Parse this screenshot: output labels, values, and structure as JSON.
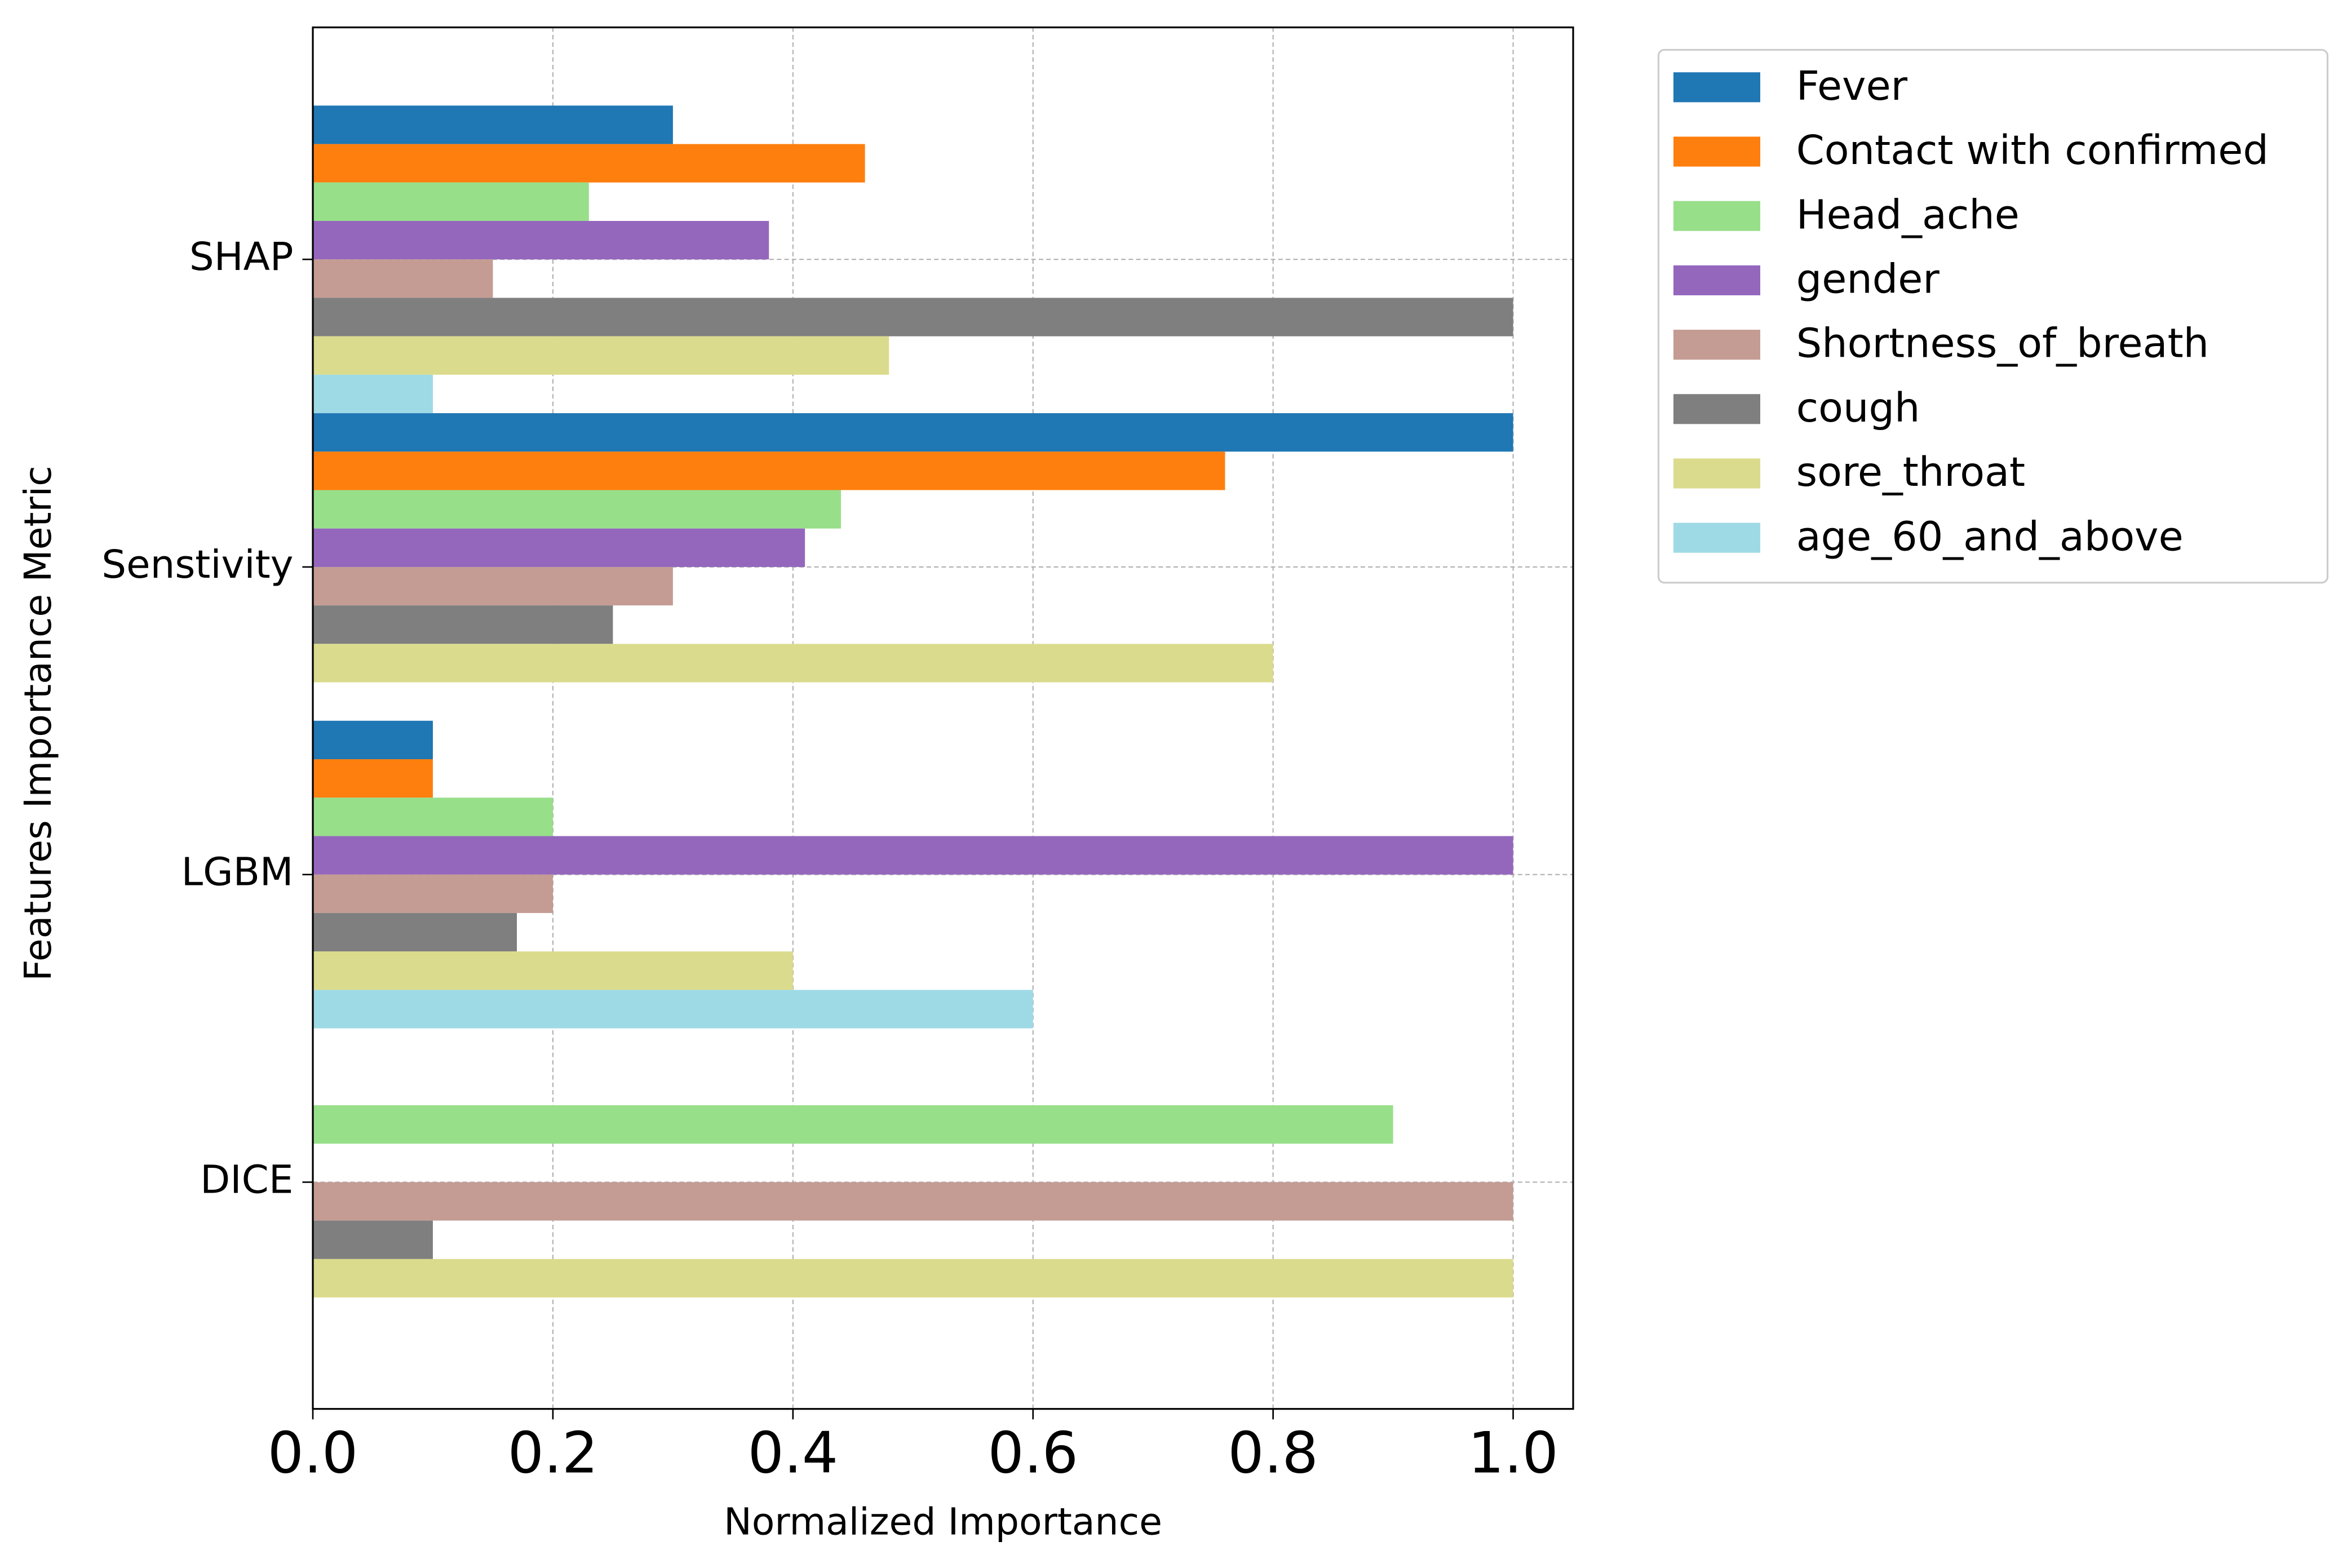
{
  "chart_data": {
    "type": "barh",
    "xlabel": "Normalized Importance",
    "ylabel": "Features Importance Metric",
    "categories": [
      "SHAP",
      "Senstivity",
      "LGBM",
      "DICE"
    ],
    "series": [
      {
        "name": "Fever",
        "color": "#1f77b4",
        "values": [
          0.3,
          1.0,
          0.1,
          0
        ]
      },
      {
        "name": "Contact with confirmed",
        "color": "#ff7f0e",
        "values": [
          0.46,
          0.76,
          0.1,
          0
        ]
      },
      {
        "name": "Head_ache",
        "color": "#98df8a",
        "values": [
          0.23,
          0.44,
          0.2,
          0.9
        ]
      },
      {
        "name": "gender",
        "color": "#9467bd",
        "values": [
          0.38,
          0.41,
          1.0,
          0
        ]
      },
      {
        "name": "Shortness_of_breath",
        "color": "#c49c94",
        "values": [
          0.15,
          0.3,
          0.2,
          1.0
        ]
      },
      {
        "name": "cough",
        "color": "#7f7f7f",
        "values": [
          1.0,
          0.25,
          0.17,
          0.1
        ]
      },
      {
        "name": "sore_throat",
        "color": "#dbdb8d",
        "values": [
          0.48,
          0.8,
          0.4,
          1.0
        ]
      },
      {
        "name": "age_60_and_above",
        "color": "#9edae5",
        "values": [
          0.1,
          0,
          0.6,
          0
        ]
      }
    ],
    "xlim": [
      0,
      1.05
    ],
    "xticks": [
      {
        "value": 0,
        "label": "0.0"
      },
      0.2,
      0.4,
      0.6,
      0.8,
      {
        "value": 1.0,
        "label": "1.0"
      }
    ],
    "grid": true,
    "legend": "outside upper right"
  }
}
